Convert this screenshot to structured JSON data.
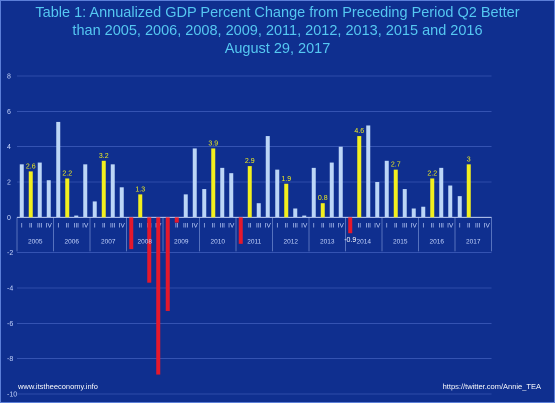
{
  "page": {
    "footer_left": "www.itstheeconomy.info",
    "footer_right": "https://twitter.com/Annie_TEA"
  },
  "colors": {
    "background": "#0f2f8f",
    "bar_default": "#bcd6f7",
    "bar_q2": "#f2ef1e",
    "bar_negative": "#e5182c",
    "title": "#55c8f2",
    "label_q2": "#f2ef1e",
    "axis_text": "#c9d8ff",
    "grid": "#4b69c6"
  },
  "chart_data": {
    "type": "bar",
    "title": [
      "Table 1: Annualized GDP Percent Change from Preceding Period Q2 Better",
      "than 2005, 2006, 2008, 2009, 2011, 2012, 2013, 2015 and 2016",
      "August 29, 2017"
    ],
    "xlabel": "",
    "ylabel": "",
    "ylim": [
      -10,
      8
    ],
    "yticks": [
      -10,
      -8,
      -6,
      -4,
      -2,
      0,
      2,
      4,
      6,
      8
    ],
    "grid": true,
    "legend": "none",
    "quarter_labels": [
      "I",
      "II",
      "III",
      "IV"
    ],
    "years": [
      {
        "year": "2005",
        "values": [
          3.0,
          2.6,
          3.1,
          2.1
        ]
      },
      {
        "year": "2006",
        "values": [
          5.4,
          2.2,
          0.1,
          3.0
        ]
      },
      {
        "year": "2007",
        "values": [
          0.9,
          3.2,
          3.0,
          1.7
        ]
      },
      {
        "year": "2008",
        "values": [
          -1.8,
          1.3,
          -3.7,
          -8.9
        ]
      },
      {
        "year": "2009",
        "values": [
          -5.3,
          -0.3,
          1.3,
          3.9
        ]
      },
      {
        "year": "2010",
        "values": [
          1.6,
          3.9,
          2.8,
          2.5
        ]
      },
      {
        "year": "2011",
        "values": [
          -1.5,
          2.9,
          0.8,
          4.6
        ]
      },
      {
        "year": "2012",
        "values": [
          2.7,
          1.9,
          0.5,
          0.1
        ]
      },
      {
        "year": "2013",
        "values": [
          2.8,
          0.8,
          3.1,
          4.0
        ]
      },
      {
        "year": "2014",
        "values": [
          -0.9,
          4.6,
          5.2,
          2.0
        ]
      },
      {
        "year": "2015",
        "values": [
          3.2,
          2.7,
          1.6,
          0.5
        ]
      },
      {
        "year": "2016",
        "values": [
          0.6,
          2.2,
          2.8,
          1.8
        ]
      },
      {
        "year": "2017",
        "values": [
          1.2,
          3.0,
          null,
          null
        ]
      }
    ],
    "data_labels": [
      {
        "year": "2005",
        "quarter": "II",
        "text": "2.6"
      },
      {
        "year": "2006",
        "quarter": "II",
        "text": "2.2"
      },
      {
        "year": "2007",
        "quarter": "II",
        "text": "3.2"
      },
      {
        "year": "2008",
        "quarter": "II",
        "text": "1.3"
      },
      {
        "year": "2010",
        "quarter": "II",
        "text": "3.9"
      },
      {
        "year": "2011",
        "quarter": "II",
        "text": "2.9"
      },
      {
        "year": "2012",
        "quarter": "II",
        "text": "1.9"
      },
      {
        "year": "2013",
        "quarter": "II",
        "text": "0.8"
      },
      {
        "year": "2014",
        "quarter": "I",
        "text": "-0.9"
      },
      {
        "year": "2014",
        "quarter": "II",
        "text": "4.6"
      },
      {
        "year": "2015",
        "quarter": "II",
        "text": "2.7"
      },
      {
        "year": "2016",
        "quarter": "II",
        "text": "2.2"
      },
      {
        "year": "2017",
        "quarter": "II",
        "text": "3"
      }
    ]
  }
}
